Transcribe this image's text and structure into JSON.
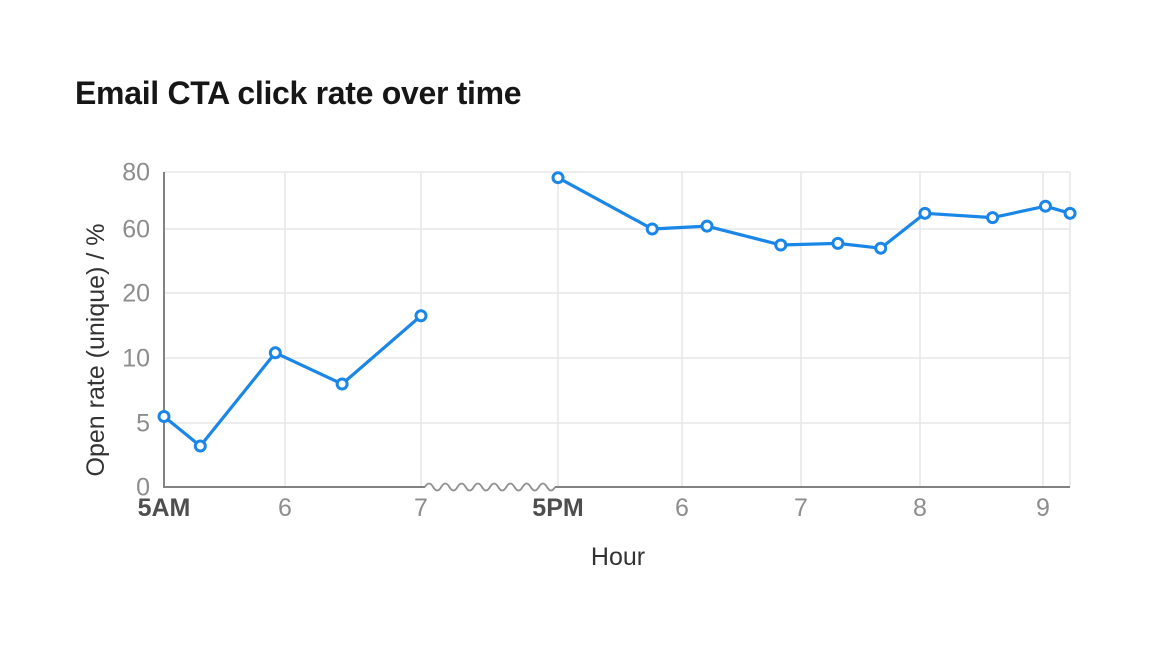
{
  "title": "Email CTA click rate over time",
  "chart_data": {
    "type": "line",
    "title": "Email CTA click rate over time",
    "x_axis": {
      "label": "Hour",
      "ticks": [
        {
          "label": "5AM",
          "hour": 5,
          "emphasis": true
        },
        {
          "label": "6",
          "hour": 6,
          "emphasis": false
        },
        {
          "label": "7",
          "hour": 7,
          "emphasis": false
        },
        {
          "label": "5PM",
          "hour": 17,
          "emphasis": true
        },
        {
          "label": "6",
          "hour": 18,
          "emphasis": false
        },
        {
          "label": "7",
          "hour": 19,
          "emphasis": false
        },
        {
          "label": "8",
          "hour": 20,
          "emphasis": false
        },
        {
          "label": "9",
          "hour": 21,
          "emphasis": false
        }
      ],
      "break": {
        "between": [
          "7AM",
          "5PM"
        ],
        "style": "squiggle"
      }
    },
    "y_axis": {
      "label": "Open rate (unique) / %",
      "ticks": [
        0,
        5,
        10,
        20,
        60,
        80
      ],
      "range": [
        0,
        80
      ],
      "scale": "non-linear (labeled ticks evenly spaced)"
    },
    "series": [
      {
        "name": "Open rate (unique)",
        "segments": [
          {
            "period": "AM",
            "points": [
              {
                "time": "5:00AM",
                "hour": 5.0,
                "value": 5.5
              },
              {
                "time": "5:18AM",
                "hour": 5.3,
                "value": 3.2
              },
              {
                "time": "5:55AM",
                "hour": 5.92,
                "value": 10.8
              },
              {
                "time": "6:25AM",
                "hour": 6.42,
                "value": 8.0
              },
              {
                "time": "7:00AM",
                "hour": 7.0,
                "value": 16.5
              }
            ]
          },
          {
            "period": "PM",
            "points": [
              {
                "time": "5:00PM",
                "hour": 17.0,
                "value": 78
              },
              {
                "time": "5:46PM",
                "hour": 17.76,
                "value": 60
              },
              {
                "time": "6:13PM",
                "hour": 18.21,
                "value": 61
              },
              {
                "time": "6:50PM",
                "hour": 18.83,
                "value": 50
              },
              {
                "time": "7:19PM",
                "hour": 19.31,
                "value": 51
              },
              {
                "time": "7:40PM",
                "hour": 19.67,
                "value": 48
              },
              {
                "time": "8:02PM",
                "hour": 20.04,
                "value": 65.5
              },
              {
                "time": "8:35PM",
                "hour": 20.59,
                "value": 64
              },
              {
                "time": "9:01PM",
                "hour": 21.02,
                "value": 68
              },
              {
                "time": "9:13PM",
                "hour": 21.22,
                "value": 65.5
              }
            ]
          }
        ]
      }
    ],
    "grid": true,
    "legend": "none",
    "colors": {
      "line": "#1a87e8",
      "point_fill": "#ffffff",
      "axis": "#828282",
      "squiggle": "#909090",
      "gridline": "#e7e7e7",
      "tick_label": "#8d8d8d",
      "tick_label_emphasis": "#4e4e4e",
      "axis_title": "#333333",
      "title": "#161616"
    }
  }
}
